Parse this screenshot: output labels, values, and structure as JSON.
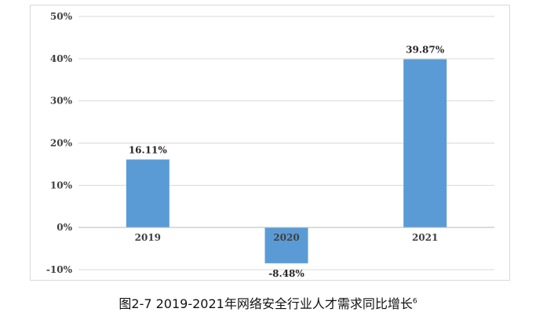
{
  "chart_data": {
    "type": "bar",
    "categories": [
      "2019",
      "2020",
      "2021"
    ],
    "values": [
      16.11,
      -8.48,
      39.87
    ],
    "data_labels": [
      "16.11%",
      "-8.48%",
      "39.87%"
    ],
    "ylim": [
      -10,
      50
    ],
    "yticks": [
      50,
      40,
      30,
      20,
      10,
      0,
      -10
    ],
    "ytick_labels": [
      "50%",
      "40%",
      "30%",
      "20%",
      "10%",
      "0%",
      "-10%"
    ],
    "grid": true,
    "bar_color": "#5b9bd5",
    "title": "图2-7 2019-2021年网络安全行业人才需求同比增长",
    "title_footnote": "6"
  }
}
